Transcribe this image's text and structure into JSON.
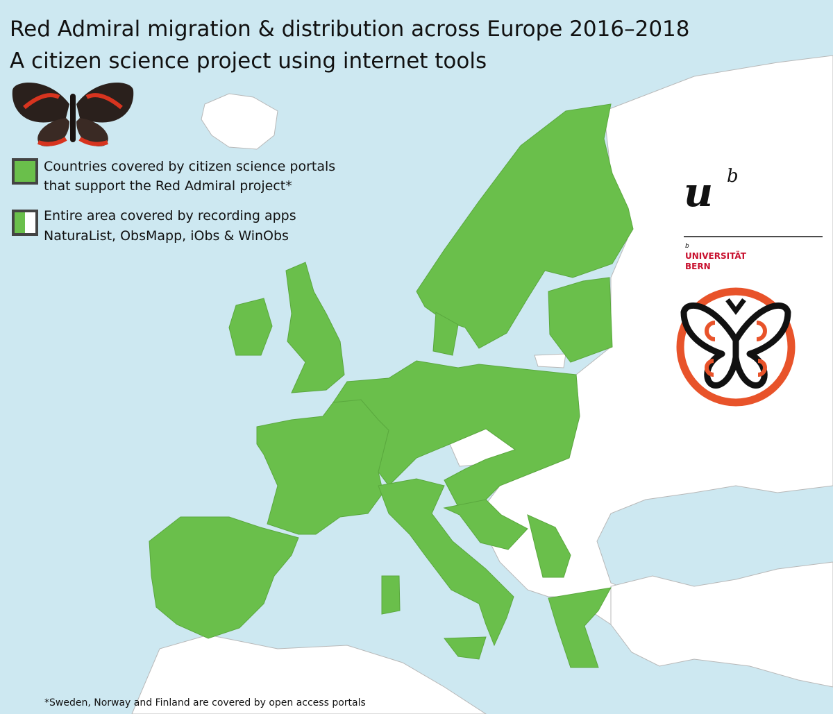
{
  "header": {
    "title_lines": [
      "Red Admiral migration & distribution across Europe 2016–2018",
      "A citizen science project using internet tools"
    ]
  },
  "legend": {
    "items": [
      {
        "lines": [
          "Countries covered by citizen science portals",
          "that support the Red Admiral project*"
        ]
      },
      {
        "lines": [
          "Entire area covered by recording apps",
          "NaturaList, ObsMapp, iObs & WinObs"
        ]
      }
    ]
  },
  "logo": {
    "mark": "u",
    "superscript": "b",
    "small": "b",
    "name_lines": [
      "UNIVERSITÄT",
      "BERN"
    ]
  },
  "footnote": "*Sweden, Norway and Finland are covered by open access portals"
}
